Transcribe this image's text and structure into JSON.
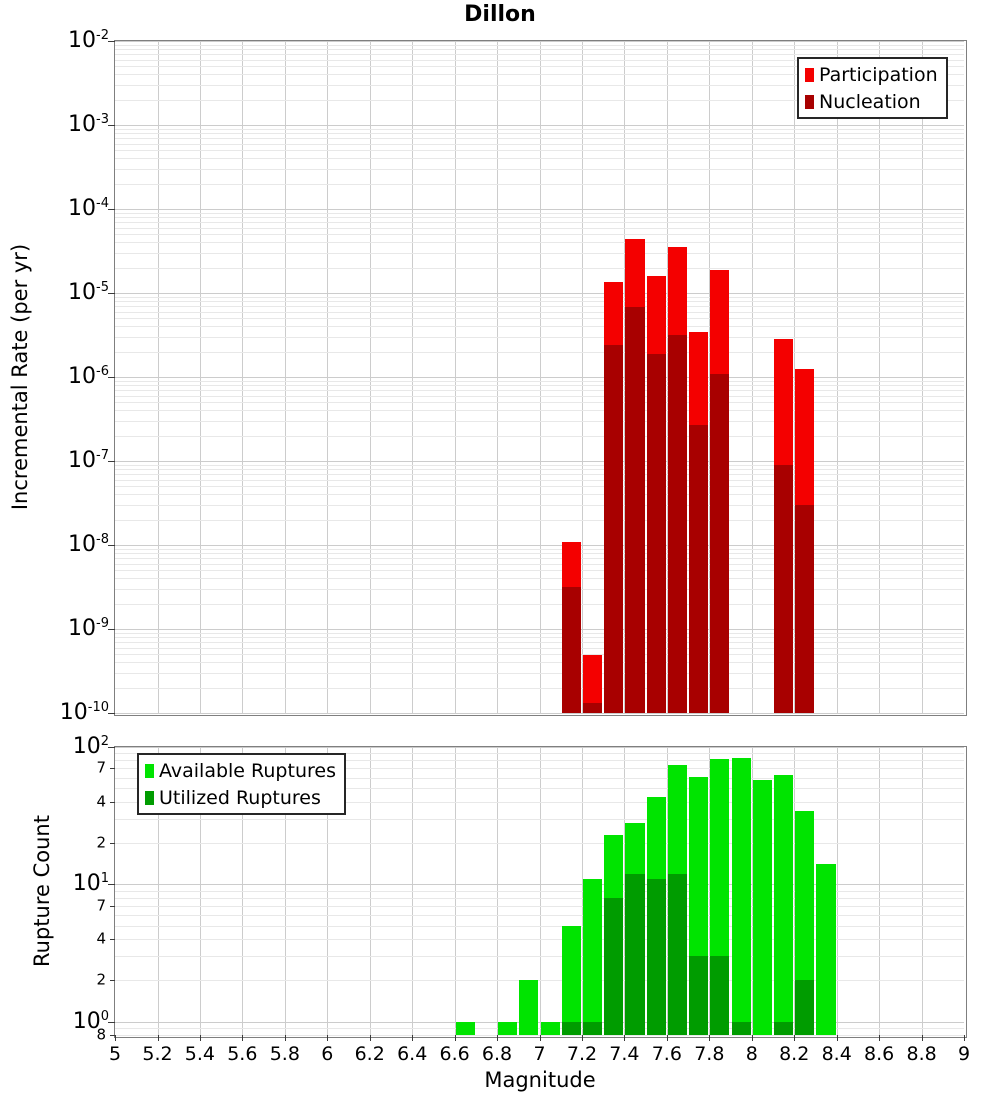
{
  "title": "Dillon",
  "chart_data": [
    {
      "type": "bar",
      "panel": "incremental-rate",
      "title": "Dillon",
      "ylabel": "Incremental Rate (per yr)",
      "xlabel": "",
      "yscale": "log",
      "ylim": [
        1e-10,
        0.01
      ],
      "xlim": [
        5,
        9
      ],
      "bin_width": 0.1,
      "grid": true,
      "legend_position": "top-right",
      "categories": [
        7.15,
        7.25,
        7.35,
        7.45,
        7.55,
        7.65,
        7.75,
        7.85,
        8.15,
        8.25
      ],
      "series": [
        {
          "name": "Participation",
          "color": "#f40000",
          "values": [
            1.1e-08,
            4.9e-10,
            1.35e-05,
            4.4e-05,
            1.6e-05,
            3.5e-05,
            3.4e-06,
            1.9e-05,
            2.8e-06,
            1.25e-06
          ]
        },
        {
          "name": "Nucleation",
          "color": "#a80000",
          "values": [
            3.2e-09,
            1.3e-10,
            2.4e-06,
            6.8e-06,
            1.9e-06,
            3.2e-06,
            2.7e-07,
            1.1e-06,
            9e-08,
            3e-08
          ]
        }
      ],
      "y_ticks": [
        {
          "v": 0.01,
          "label": "10",
          "exp": "-2"
        },
        {
          "v": 0.001,
          "label": "10",
          "exp": "-3"
        },
        {
          "v": 0.0001,
          "label": "10",
          "exp": "-4"
        },
        {
          "v": 1e-05,
          "label": "10",
          "exp": "-5"
        },
        {
          "v": 1e-06,
          "label": "10",
          "exp": "-6"
        },
        {
          "v": 1e-07,
          "label": "10",
          "exp": "-7"
        },
        {
          "v": 1e-08,
          "label": "10",
          "exp": "-8"
        },
        {
          "v": 1e-09,
          "label": "10",
          "exp": "-9"
        },
        {
          "v": 1e-10,
          "label": "10",
          "exp": "-10"
        }
      ],
      "y_minor_labels": [],
      "x_ticks": []
    },
    {
      "type": "bar",
      "panel": "rupture-count",
      "title": "",
      "ylabel": "Rupture Count",
      "xlabel": "Magnitude",
      "yscale": "log",
      "ylim": [
        0.8,
        100
      ],
      "xlim": [
        5,
        9
      ],
      "bin_width": 0.1,
      "grid": true,
      "legend_position": "top-left",
      "categories": [
        6.65,
        6.85,
        6.95,
        7.05,
        7.15,
        7.25,
        7.35,
        7.45,
        7.55,
        7.65,
        7.75,
        7.85,
        7.95,
        8.05,
        8.15,
        8.25,
        8.35
      ],
      "series": [
        {
          "name": "Available Ruptures",
          "color": "#00e400",
          "values": [
            1,
            1,
            2,
            1,
            5,
            11,
            23,
            28,
            43,
            74,
            61,
            82,
            83,
            58,
            63,
            34,
            14
          ]
        },
        {
          "name": "Utilized Ruptures",
          "color": "#009c00",
          "values": [
            0,
            0,
            0,
            0,
            1,
            1,
            8,
            12,
            11,
            12,
            3,
            3,
            1,
            0,
            1,
            2,
            0
          ]
        }
      ],
      "y_ticks": [
        {
          "v": 100,
          "label": "10",
          "exp": "2"
        },
        {
          "v": 10,
          "label": "10",
          "exp": "1"
        },
        {
          "v": 1,
          "label": "10",
          "exp": "0"
        }
      ],
      "y_minor_labels": [
        {
          "v": 70,
          "label": "7"
        },
        {
          "v": 40,
          "label": "4"
        },
        {
          "v": 20,
          "label": "2"
        },
        {
          "v": 7,
          "label": "7"
        },
        {
          "v": 4,
          "label": "4"
        },
        {
          "v": 2,
          "label": "2"
        },
        {
          "v": 0.8,
          "label": "8"
        }
      ],
      "x_ticks": [
        {
          "v": 5,
          "label": "5"
        },
        {
          "v": 5.2,
          "label": "5.2"
        },
        {
          "v": 5.4,
          "label": "5.4"
        },
        {
          "v": 5.6,
          "label": "5.6"
        },
        {
          "v": 5.8,
          "label": "5.8"
        },
        {
          "v": 6,
          "label": "6"
        },
        {
          "v": 6.2,
          "label": "6.2"
        },
        {
          "v": 6.4,
          "label": "6.4"
        },
        {
          "v": 6.6,
          "label": "6.6"
        },
        {
          "v": 6.8,
          "label": "6.8"
        },
        {
          "v": 7,
          "label": "7"
        },
        {
          "v": 7.2,
          "label": "7.2"
        },
        {
          "v": 7.4,
          "label": "7.4"
        },
        {
          "v": 7.6,
          "label": "7.6"
        },
        {
          "v": 7.8,
          "label": "7.8"
        },
        {
          "v": 8,
          "label": "8"
        },
        {
          "v": 8.2,
          "label": "8.2"
        },
        {
          "v": 8.4,
          "label": "8.4"
        },
        {
          "v": 8.6,
          "label": "8.6"
        },
        {
          "v": 8.8,
          "label": "8.8"
        },
        {
          "v": 9,
          "label": "9"
        }
      ]
    }
  ]
}
